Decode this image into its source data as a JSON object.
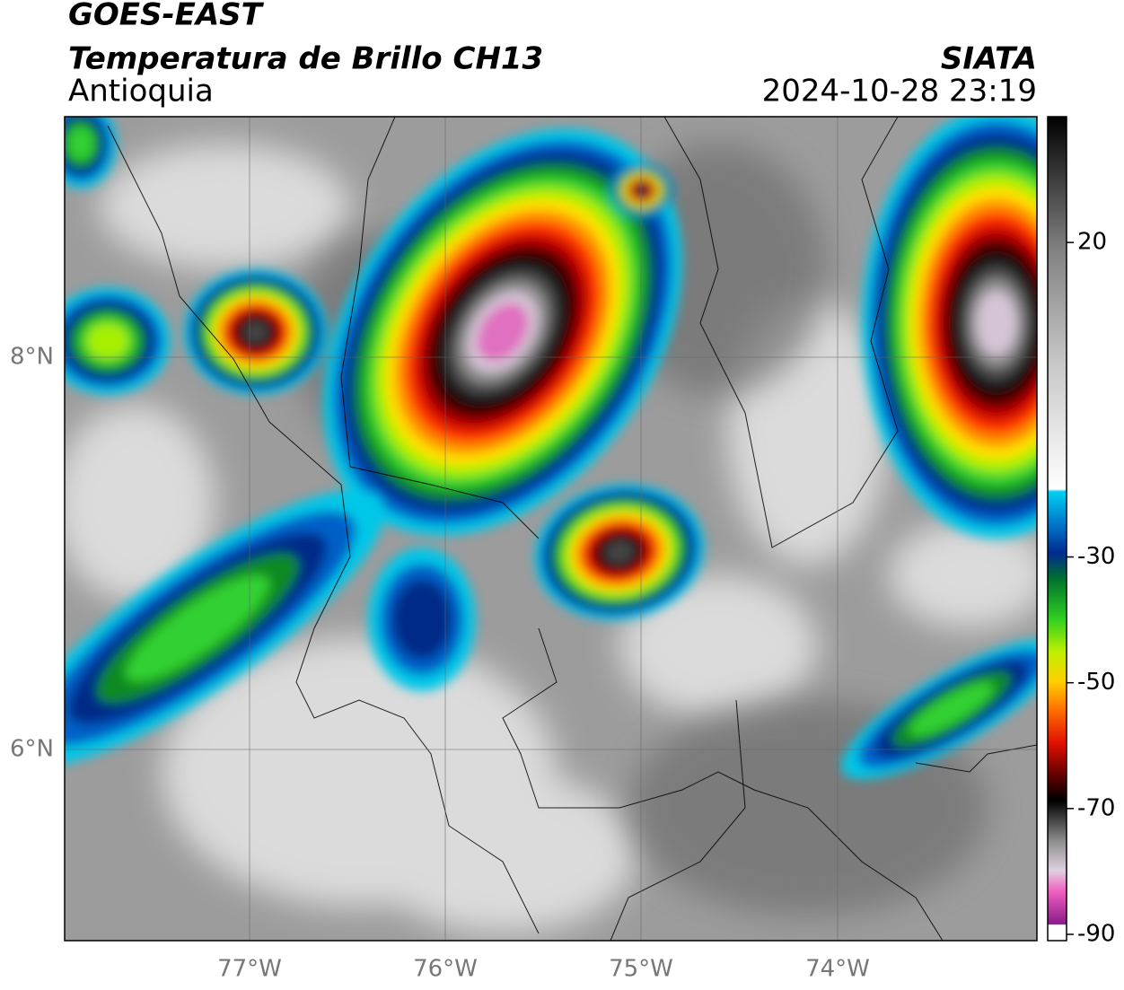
{
  "header": {
    "title": "GOES-EAST",
    "subtitle": "Temperatura de Brillo CH13",
    "region": "Antioquia",
    "source": "SIATA",
    "datetime": "2024-10-28 23:19"
  },
  "map": {
    "lat_labels": [
      "8°N",
      "6°N"
    ],
    "lon_labels": [
      "77°W",
      "76°W",
      "75°W",
      "74°W"
    ]
  },
  "colorbar": {
    "clim": [
      40,
      -91
    ],
    "ticks": [
      20,
      -30,
      -50,
      -70,
      -90
    ]
  }
}
